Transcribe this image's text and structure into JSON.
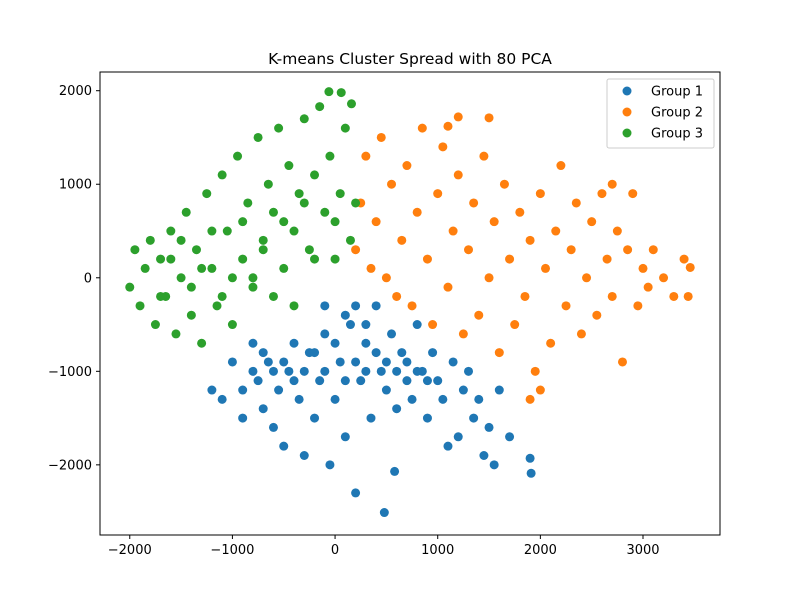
{
  "chart_data": {
    "type": "scatter",
    "title": "K-means Cluster Spread with 80 PCA",
    "xlabel": "",
    "ylabel": "",
    "xlim": [
      -2290,
      3750
    ],
    "ylim": [
      -2750,
      2200
    ],
    "xticks": [
      -2000,
      -1000,
      0,
      1000,
      2000,
      3000
    ],
    "yticks": [
      -2000,
      -1000,
      0,
      1000,
      2000
    ],
    "xtick_labels": [
      "−2000",
      "−1000",
      "0",
      "1000",
      "2000",
      "3000"
    ],
    "ytick_labels": [
      "−2000",
      "−1000",
      "0",
      "1000",
      "2000"
    ],
    "grid": false,
    "legend_position": "top-right",
    "series": [
      {
        "name": "Group 1",
        "color": "#1f77b4",
        "points": [
          [
            -1200,
            -1200
          ],
          [
            -1100,
            -1300
          ],
          [
            -1000,
            -900
          ],
          [
            -900,
            -1500
          ],
          [
            -800,
            -700
          ],
          [
            -750,
            -1100
          ],
          [
            -700,
            -1400
          ],
          [
            -650,
            -900
          ],
          [
            -600,
            -1600
          ],
          [
            -550,
            -1200
          ],
          [
            -500,
            -1800
          ],
          [
            -450,
            -1000
          ],
          [
            -400,
            -700
          ],
          [
            -350,
            -1300
          ],
          [
            -300,
            -1900
          ],
          [
            -250,
            -800
          ],
          [
            -200,
            -1500
          ],
          [
            -150,
            -1100
          ],
          [
            -100,
            -600
          ],
          [
            -50,
            -2000
          ],
          [
            0,
            -1300
          ],
          [
            50,
            -900
          ],
          [
            100,
            -1700
          ],
          [
            150,
            -500
          ],
          [
            200,
            -2300
          ],
          [
            250,
            -1100
          ],
          [
            300,
            -700
          ],
          [
            350,
            -1500
          ],
          [
            400,
            -300
          ],
          [
            450,
            -1000
          ],
          [
            480,
            -2510
          ],
          [
            500,
            -1200
          ],
          [
            550,
            -600
          ],
          [
            580,
            -2070
          ],
          [
            600,
            -1400
          ],
          [
            650,
            -800
          ],
          [
            700,
            -1100
          ],
          [
            750,
            -1300
          ],
          [
            800,
            -500
          ],
          [
            850,
            -1000
          ],
          [
            900,
            -1500
          ],
          [
            950,
            -800
          ],
          [
            1000,
            -1100
          ],
          [
            1050,
            -1300
          ],
          [
            1100,
            -1800
          ],
          [
            1150,
            -900
          ],
          [
            1200,
            -1700
          ],
          [
            1250,
            -1200
          ],
          [
            1300,
            -1000
          ],
          [
            1350,
            -1500
          ],
          [
            1400,
            -1300
          ],
          [
            1450,
            -1900
          ],
          [
            1500,
            -1600
          ],
          [
            1550,
            -2000
          ],
          [
            1600,
            -1200
          ],
          [
            1700,
            -1700
          ],
          [
            1900,
            -1930
          ],
          [
            1910,
            -2090
          ],
          [
            -800,
            -1000
          ],
          [
            -900,
            -1200
          ],
          [
            -700,
            -800
          ],
          [
            -600,
            -1000
          ],
          [
            -500,
            -900
          ],
          [
            -400,
            -1100
          ],
          [
            -300,
            -1000
          ],
          [
            -200,
            -800
          ],
          [
            -100,
            -1000
          ],
          [
            0,
            -700
          ],
          [
            100,
            -1100
          ],
          [
            200,
            -900
          ],
          [
            300,
            -1000
          ],
          [
            400,
            -800
          ],
          [
            500,
            -900
          ],
          [
            600,
            -1000
          ],
          [
            700,
            -900
          ],
          [
            800,
            -1000
          ],
          [
            900,
            -1100
          ],
          [
            200,
            -300
          ],
          [
            300,
            -500
          ],
          [
            100,
            -400
          ],
          [
            -100,
            -300
          ]
        ]
      },
      {
        "name": "Group 2",
        "color": "#ff7f0e",
        "points": [
          [
            200,
            300
          ],
          [
            250,
            800
          ],
          [
            300,
            1300
          ],
          [
            350,
            100
          ],
          [
            400,
            600
          ],
          [
            450,
            1500
          ],
          [
            500,
            0
          ],
          [
            550,
            1000
          ],
          [
            600,
            -200
          ],
          [
            650,
            400
          ],
          [
            700,
            1200
          ],
          [
            750,
            -300
          ],
          [
            800,
            700
          ],
          [
            850,
            1600
          ],
          [
            900,
            200
          ],
          [
            950,
            -500
          ],
          [
            1000,
            900
          ],
          [
            1050,
            1400
          ],
          [
            1100,
            -100
          ],
          [
            1150,
            500
          ],
          [
            1200,
            1100
          ],
          [
            1250,
            -600
          ],
          [
            1300,
            300
          ],
          [
            1350,
            800
          ],
          [
            1400,
            -400
          ],
          [
            1450,
            1300
          ],
          [
            1500,
            0
          ],
          [
            1550,
            600
          ],
          [
            1600,
            -800
          ],
          [
            1650,
            1000
          ],
          [
            1700,
            200
          ],
          [
            1750,
            -500
          ],
          [
            1800,
            700
          ],
          [
            1850,
            -200
          ],
          [
            1900,
            400
          ],
          [
            1950,
            -1000
          ],
          [
            2000,
            900
          ],
          [
            2050,
            100
          ],
          [
            2100,
            -700
          ],
          [
            2150,
            500
          ],
          [
            2200,
            1200
          ],
          [
            2250,
            -300
          ],
          [
            2300,
            300
          ],
          [
            2350,
            800
          ],
          [
            2400,
            -600
          ],
          [
            2450,
            0
          ],
          [
            2500,
            600
          ],
          [
            2550,
            -400
          ],
          [
            2600,
            900
          ],
          [
            2650,
            200
          ],
          [
            2700,
            -200
          ],
          [
            2750,
            500
          ],
          [
            2800,
            -900
          ],
          [
            2850,
            300
          ],
          [
            2900,
            900
          ],
          [
            2950,
            -300
          ],
          [
            3000,
            100
          ],
          [
            3050,
            -100
          ],
          [
            3100,
            300
          ],
          [
            3200,
            0
          ],
          [
            3300,
            -200
          ],
          [
            3400,
            200
          ],
          [
            3440,
            -200
          ],
          [
            3460,
            110
          ],
          [
            1500,
            1710
          ],
          [
            1200,
            1720
          ],
          [
            1100,
            1620
          ],
          [
            2700,
            1000
          ],
          [
            1900,
            -1300
          ],
          [
            2000,
            -1200
          ]
        ]
      },
      {
        "name": "Group 3",
        "color": "#2ca02c",
        "points": [
          [
            -2000,
            -100
          ],
          [
            -1950,
            300
          ],
          [
            -1900,
            -300
          ],
          [
            -1850,
            100
          ],
          [
            -1800,
            400
          ],
          [
            -1750,
            -500
          ],
          [
            -1700,
            200
          ],
          [
            -1650,
            -200
          ],
          [
            -1600,
            500
          ],
          [
            -1550,
            -600
          ],
          [
            -1500,
            0
          ],
          [
            -1450,
            700
          ],
          [
            -1400,
            -400
          ],
          [
            -1350,
            300
          ],
          [
            -1300,
            -700
          ],
          [
            -1250,
            900
          ],
          [
            -1200,
            100
          ],
          [
            -1150,
            -300
          ],
          [
            -1100,
            1100
          ],
          [
            -1050,
            500
          ],
          [
            -1000,
            -500
          ],
          [
            -950,
            1300
          ],
          [
            -900,
            200
          ],
          [
            -850,
            800
          ],
          [
            -800,
            -100
          ],
          [
            -750,
            1500
          ],
          [
            -700,
            400
          ],
          [
            -650,
            1000
          ],
          [
            -600,
            -200
          ],
          [
            -550,
            1600
          ],
          [
            -500,
            600
          ],
          [
            -450,
            1200
          ],
          [
            -400,
            -300
          ],
          [
            -350,
            900
          ],
          [
            -300,
            1700
          ],
          [
            -250,
            300
          ],
          [
            -200,
            1100
          ],
          [
            -150,
            1830
          ],
          [
            -100,
            700
          ],
          [
            -50,
            1300
          ],
          [
            0,
            200
          ],
          [
            50,
            900
          ],
          [
            100,
            1600
          ],
          [
            150,
            400
          ],
          [
            200,
            800
          ],
          [
            -60,
            1990
          ],
          [
            60,
            1980
          ],
          [
            160,
            1860
          ],
          [
            -1500,
            400
          ],
          [
            -1200,
            500
          ],
          [
            -900,
            600
          ],
          [
            -600,
            700
          ],
          [
            -300,
            800
          ],
          [
            0,
            600
          ],
          [
            -1400,
            -100
          ],
          [
            -1100,
            -200
          ],
          [
            -800,
            0
          ],
          [
            -500,
            100
          ],
          [
            -200,
            200
          ],
          [
            -1300,
            100
          ],
          [
            -1000,
            0
          ],
          [
            -700,
            300
          ],
          [
            -400,
            500
          ],
          [
            -1600,
            200
          ],
          [
            -1700,
            -200
          ]
        ]
      }
    ]
  }
}
